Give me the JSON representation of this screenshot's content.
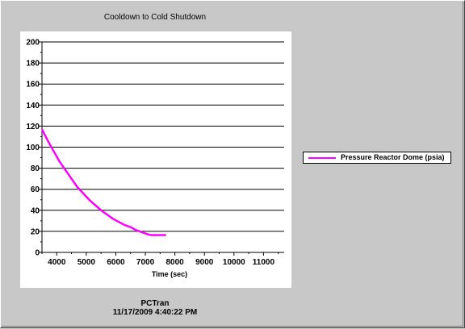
{
  "window": {
    "footer_app": "PCTran",
    "footer_timestamp": "11/17/2009 4:40:22 PM"
  },
  "chart_data": {
    "type": "line",
    "title": "Cooldown to Cold Shutdown",
    "xlabel": "Time (sec)",
    "ylabel": "",
    "xlim": [
      3500,
      11700
    ],
    "ylim": [
      0,
      200
    ],
    "x_ticks": [
      4000,
      5000,
      6000,
      7000,
      8000,
      9000,
      10000,
      11000
    ],
    "y_ticks": [
      0,
      20,
      40,
      60,
      80,
      100,
      120,
      140,
      160,
      180,
      200
    ],
    "grid": "horizontal",
    "legend_position": "right",
    "series": [
      {
        "name": "Pressure Reactor Dome (psia)",
        "color": "#ff00ff",
        "x": [
          3500,
          3700,
          3900,
          4100,
          4300,
          4500,
          4700,
          4900,
          5100,
          5300,
          5500,
          5700,
          5900,
          6100,
          6300,
          6500,
          6700,
          6900,
          7000,
          7100,
          7200,
          7400,
          7600,
          7700
        ],
        "y": [
          117,
          106,
          96,
          86,
          78,
          70,
          62,
          56,
          50,
          45,
          40,
          36,
          32,
          29,
          26,
          24,
          21,
          19,
          18,
          17,
          16.5,
          16.5,
          16.5,
          16.5
        ]
      }
    ]
  }
}
